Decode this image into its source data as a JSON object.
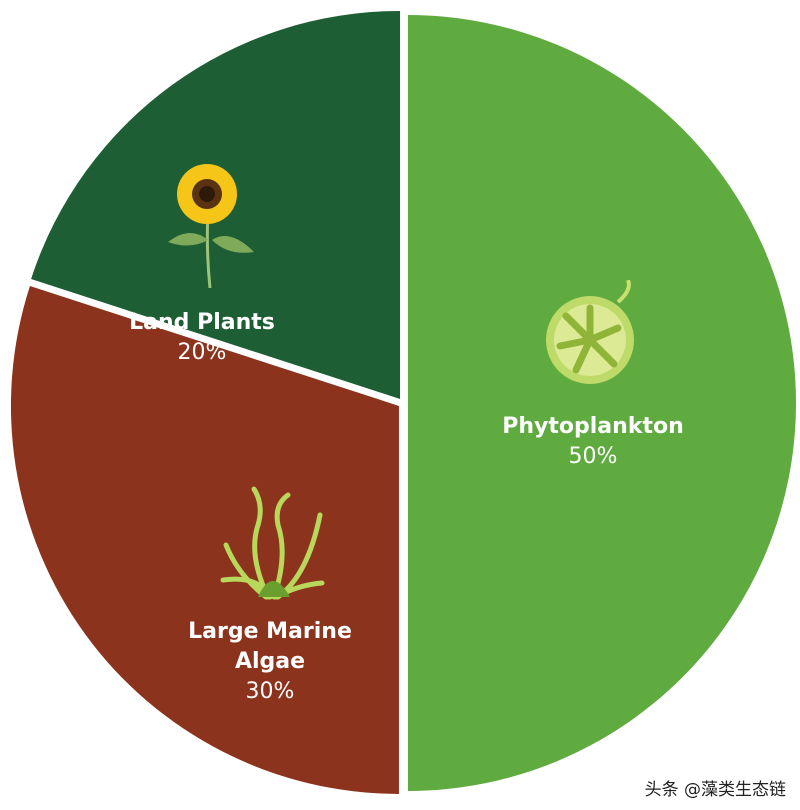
{
  "chart_data": {
    "type": "pie",
    "title": "",
    "slices": [
      {
        "label": "Phytoplankton",
        "value": 50,
        "value_label": "50%",
        "color": "#5fab3f",
        "icon": "phytoplankton-cell-icon"
      },
      {
        "label": "Large Marine Algae",
        "label_lines": [
          "Large Marine",
          "Algae"
        ],
        "value": 30,
        "value_label": "30%",
        "color": "#8b331d",
        "icon": "seaweed-icon"
      },
      {
        "label": "Land Plants",
        "value": 20,
        "value_label": "20%",
        "color": "#1d5e34",
        "icon": "sunflower-icon"
      }
    ],
    "start": "top",
    "direction": "clockwise",
    "legend": "none"
  },
  "watermark": "头条 @藻类生态链"
}
